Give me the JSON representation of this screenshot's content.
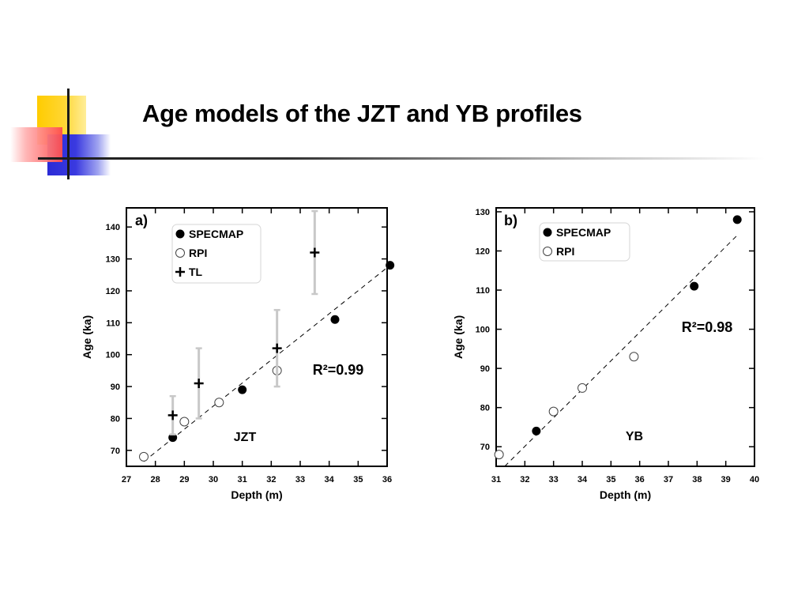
{
  "slide": {
    "title": "Age models of the JZT and YB profiles",
    "colors": {
      "yellow": "#ffcc00",
      "red": "#ff4d4d",
      "blue": "#2b2bd6",
      "rule": "#1a1a1a"
    }
  },
  "chart_data": [
    {
      "type": "scatter",
      "panel_label": "a)",
      "site_label": "JZT",
      "r2_label": "R²=0.99",
      "xlabel": "Depth (m)",
      "ylabel": "Age (ka)",
      "xlim": [
        27,
        36
      ],
      "ylim": [
        65,
        146
      ],
      "xticks": [
        27,
        28,
        29,
        30,
        31,
        32,
        33,
        34,
        35,
        36
      ],
      "yticks": [
        70,
        80,
        90,
        100,
        110,
        120,
        130,
        140
      ],
      "legend": [
        {
          "symbol": "filled-circle",
          "label": "SPECMAP"
        },
        {
          "symbol": "open-circle",
          "label": "RPI"
        },
        {
          "symbol": "plus",
          "label": "TL"
        }
      ],
      "series": [
        {
          "name": "SPECMAP",
          "marker": "filled-circle",
          "points": [
            [
              28.6,
              74
            ],
            [
              31.0,
              89
            ],
            [
              34.2,
              111
            ],
            [
              36.1,
              128
            ]
          ]
        },
        {
          "name": "RPI",
          "marker": "open-circle",
          "points": [
            [
              27.6,
              68
            ],
            [
              29.0,
              79
            ],
            [
              30.2,
              85
            ],
            [
              32.2,
              95
            ]
          ]
        },
        {
          "name": "TL",
          "marker": "plus",
          "points": [
            {
              "x": 28.6,
              "y": 81,
              "low": 75,
              "high": 87
            },
            {
              "x": 29.5,
              "y": 91,
              "low": 80,
              "high": 102
            },
            {
              "x": 32.2,
              "y": 102,
              "low": 90,
              "high": 114
            },
            {
              "x": 33.5,
              "y": 132,
              "low": 119,
              "high": 145
            }
          ]
        }
      ],
      "fit_line": [
        [
          27.6,
          66.5
        ],
        [
          36.1,
          128
        ]
      ],
      "grid": false
    },
    {
      "type": "scatter",
      "panel_label": "b)",
      "site_label": "YB",
      "r2_label": "R²=0.98",
      "xlabel": "Depth (m)",
      "ylabel": "Age (ka)",
      "xlim": [
        31,
        40
      ],
      "ylim": [
        65,
        131
      ],
      "xticks": [
        31,
        32,
        33,
        34,
        35,
        36,
        37,
        38,
        39,
        40
      ],
      "yticks": [
        70,
        80,
        90,
        100,
        110,
        120,
        130
      ],
      "legend": [
        {
          "symbol": "filled-circle",
          "label": "SPECMAP"
        },
        {
          "symbol": "open-circle",
          "label": "RPI"
        }
      ],
      "series": [
        {
          "name": "SPECMAP",
          "marker": "filled-circle",
          "points": [
            [
              32.4,
              74
            ],
            [
              37.9,
              111
            ],
            [
              39.4,
              128
            ]
          ]
        },
        {
          "name": "RPI",
          "marker": "open-circle",
          "points": [
            [
              31.1,
              68
            ],
            [
              33.0,
              79
            ],
            [
              34.0,
              85
            ],
            [
              35.8,
              93
            ]
          ]
        }
      ],
      "fit_line": [
        [
          31.3,
          65
        ],
        [
          39.4,
          124
        ]
      ],
      "grid": false
    }
  ]
}
